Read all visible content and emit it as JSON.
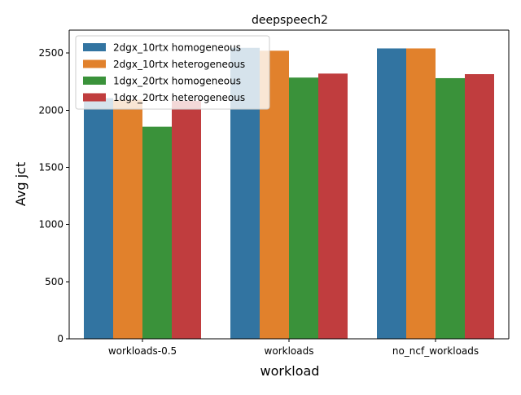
{
  "chart_data": {
    "type": "bar",
    "title": "deepspeech2",
    "xlabel": "workload",
    "ylabel": "Avg jct",
    "categories": [
      "workloads-0.5",
      "workloads",
      "no_ncf_workloads"
    ],
    "series": [
      {
        "name": "2dgx_10rtx homogeneous",
        "color": "#3274a1",
        "values": [
          2105,
          2545,
          2540
        ]
      },
      {
        "name": "2dgx_10rtx heterogeneous",
        "color": "#e1812c",
        "values": [
          2090,
          2520,
          2540
        ]
      },
      {
        "name": "1dgx_20rtx homogeneous",
        "color": "#3a923a",
        "values": [
          1855,
          2285,
          2280
        ]
      },
      {
        "name": "1dgx_20rtx heterogeneous",
        "color": "#c03d3e",
        "values": [
          2080,
          2320,
          2315
        ]
      }
    ],
    "ylim": [
      0,
      2700
    ],
    "yticks": [
      0,
      500,
      1000,
      1500,
      2000,
      2500
    ],
    "grid": false,
    "legend_position": "top-left"
  }
}
